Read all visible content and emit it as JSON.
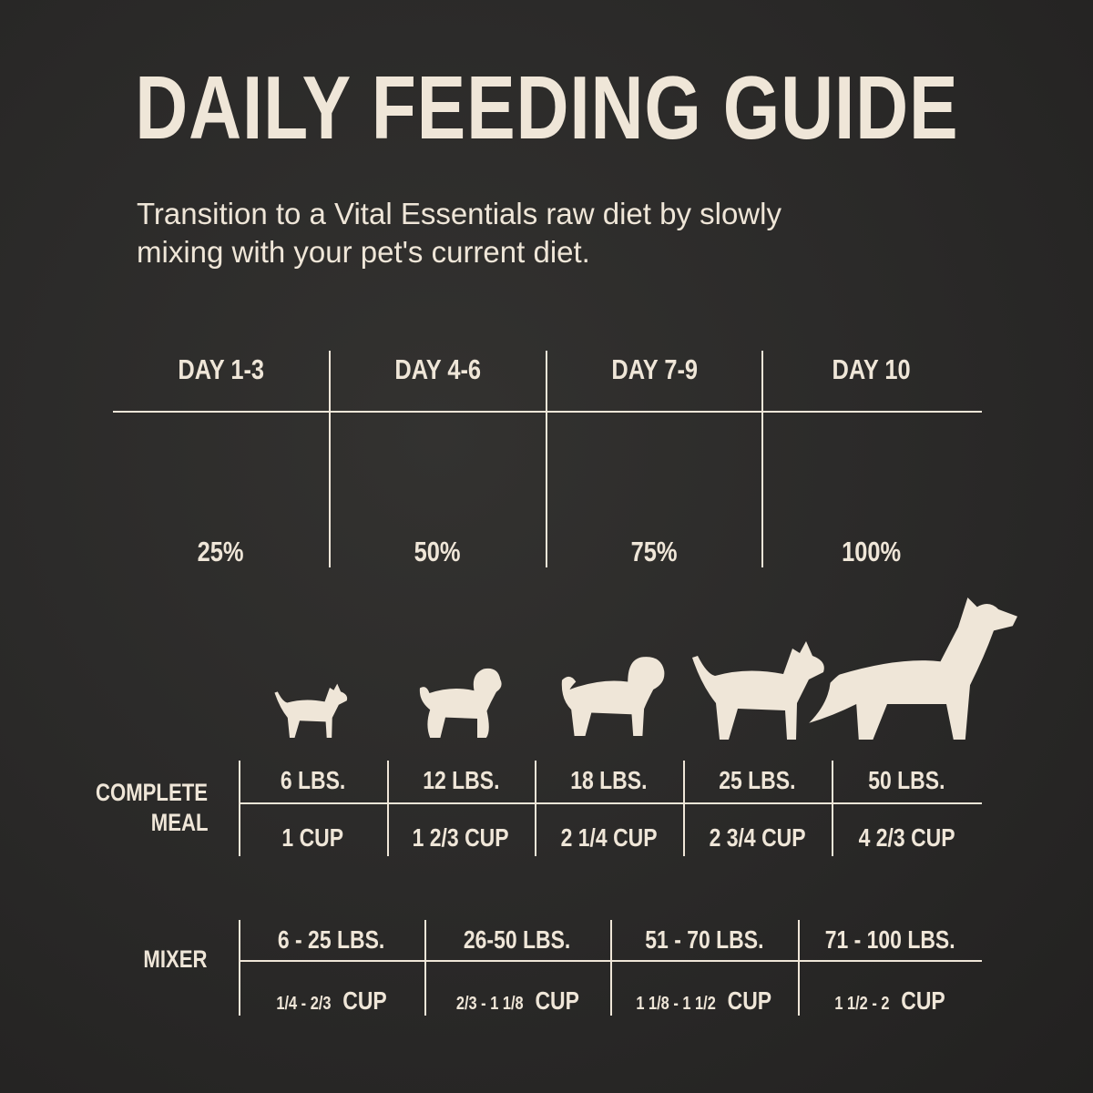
{
  "title": "DAILY FEEDING GUIDE",
  "subtitle_lines": [
    "Transition to a Vital Essentials raw diet by slowly",
    "mixing with your pet's current diet."
  ],
  "colors": {
    "background": "#2a2928",
    "foreground": "#efe6d8"
  },
  "transition": [
    {
      "day": "DAY 1-3",
      "percent": "25%",
      "fill": 0.25
    },
    {
      "day": "DAY 4-6",
      "percent": "50%",
      "fill": 0.5
    },
    {
      "day": "DAY 7-9",
      "percent": "75%",
      "fill": 0.75
    },
    {
      "day": "DAY 10",
      "percent": "100%",
      "fill": 1.0
    }
  ],
  "dogs": [
    "chihuahua-icon",
    "poodle-icon",
    "pug-icon",
    "shiba-icon",
    "shepherd-icon"
  ],
  "complete_meal": {
    "label_lines": [
      "COMPLETE",
      "MEAL"
    ],
    "weights": [
      "6 LBS.",
      "12 LBS.",
      "18 LBS.",
      "25 LBS.",
      "50 LBS."
    ],
    "cups": [
      "1 CUP",
      "1 2/3 CUP",
      "2 1/4 CUP",
      "2 3/4 CUP",
      "4 2/3 CUP"
    ]
  },
  "mixer": {
    "label": "MIXER",
    "weights": [
      "6 - 25 LBS.",
      "26-50 LBS.",
      "51 - 70 LBS.",
      "71 - 100 LBS."
    ],
    "amounts": [
      "1/4 - 2/3",
      "2/3 - 1 1/8",
      "1 1/8 - 1 1/2",
      "1 1/2 - 2"
    ],
    "unit": "CUP"
  }
}
